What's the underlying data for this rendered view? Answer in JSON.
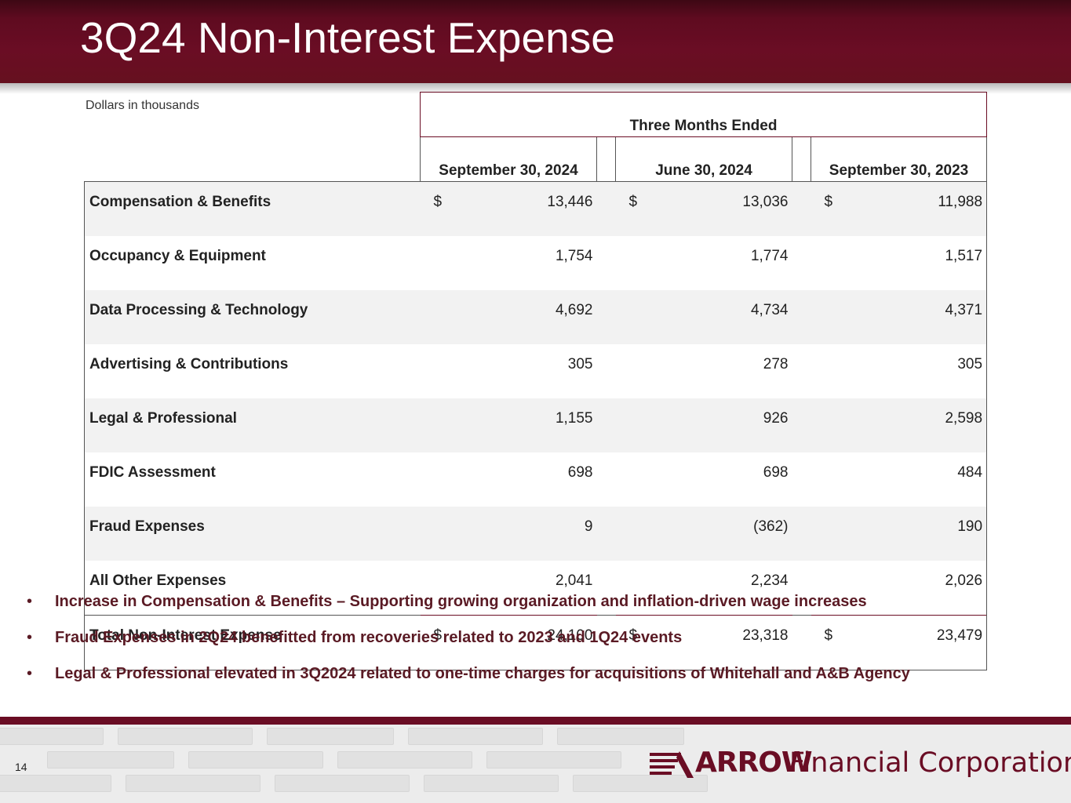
{
  "slide": {
    "title": "3Q24 Non-Interest Expense",
    "units_note": "Dollars in thousands",
    "page_number": "14"
  },
  "table": {
    "group_header": "Three Months Ended",
    "columns": [
      "September 30, 2024",
      "June 30, 2024",
      "September 30, 2023"
    ],
    "currency_symbol": "$",
    "rows": [
      {
        "label": "Compensation & Benefits",
        "values": [
          "13,446",
          "13,036",
          "11,988"
        ],
        "show_currency": true
      },
      {
        "label": "Occupancy & Equipment",
        "values": [
          "1,754",
          "1,774",
          "1,517"
        ],
        "show_currency": false
      },
      {
        "label": "Data Processing & Technology",
        "values": [
          "4,692",
          "4,734",
          "4,371"
        ],
        "show_currency": false
      },
      {
        "label": "Advertising & Contributions",
        "values": [
          "305",
          "278",
          "305"
        ],
        "show_currency": false
      },
      {
        "label": "Legal & Professional",
        "values": [
          "1,155",
          "926",
          "2,598"
        ],
        "show_currency": false
      },
      {
        "label": "FDIC Assessment",
        "values": [
          "698",
          "698",
          "484"
        ],
        "show_currency": false
      },
      {
        "label": "Fraud Expenses",
        "values": [
          "9",
          "(362)",
          "190"
        ],
        "show_currency": false
      },
      {
        "label": "All Other Expenses",
        "values": [
          "2,041",
          "2,234",
          "2,026"
        ],
        "show_currency": false
      }
    ],
    "total": {
      "label": "Total Non-Interest Expense",
      "values": [
        "24,100",
        "23,318",
        "23,479"
      ]
    }
  },
  "bullets": [
    "Increase in Compensation & Benefits – Supporting growing organization and inflation-driven wage increases",
    "Fraud Expenses in 2Q24 benefitted from recoveries related to 2023 and 1Q24 events",
    "Legal & Professional elevated in 3Q2024 related to one-time charges for acquisitions of Whitehall and A&B Agency"
  ],
  "bullet_glyph": "•",
  "logo": {
    "brand": "ARROW",
    "brand_rest": "Financial Corporation"
  },
  "colors": {
    "brand_maroon": "#6a0d24",
    "bullet_text": "#5a1a24",
    "row_shade": "#f2f2f2"
  }
}
